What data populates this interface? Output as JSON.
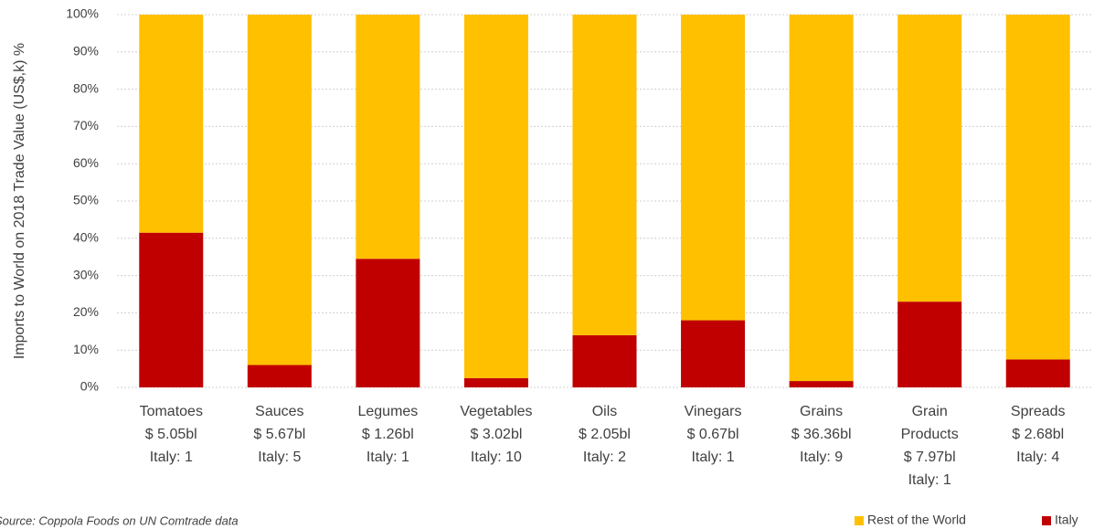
{
  "chart_data": {
    "type": "stacked_bar",
    "y_label": "Imports to World on 2018 Trade Value (US$,k) %",
    "source": "Source: Coppola Foods on UN Comtrade data",
    "categories": [
      [
        "Tomatoes",
        "$ 5.05bl",
        "Italy: 1"
      ],
      [
        "Sauces",
        "$ 5.67bl",
        "Italy: 5"
      ],
      [
        "Legumes",
        "$ 1.26bl",
        "Italy: 1"
      ],
      [
        "Vegetables",
        "$ 3.02bl",
        "Italy: 10"
      ],
      [
        "Oils",
        "$ 2.05bl",
        "Italy: 2"
      ],
      [
        "Vinegars",
        "$ 0.67bl",
        "Italy: 1"
      ],
      [
        "Grains",
        "$ 36.36bl",
        "Italy: 9"
      ],
      [
        "Grain",
        "Products",
        "$ 7.97bl",
        "Italy: 1"
      ],
      [
        "Spreads",
        "$ 2.68bl",
        "Italy: 4"
      ]
    ],
    "series": [
      {
        "name": "Italy",
        "color": "#c00000",
        "values": [
          41.5,
          6,
          34.5,
          2.5,
          14,
          18,
          1.7,
          23,
          7.5
        ]
      },
      {
        "name": "Rest of the World",
        "color": "#ffc000",
        "values": [
          58.5,
          94,
          65.5,
          97.5,
          86,
          82,
          98.3,
          77,
          92.5
        ]
      }
    ],
    "ylim": [
      0,
      100
    ],
    "yticks": [
      {
        "value": 0,
        "label": "0%"
      },
      {
        "value": 10,
        "label": "10%"
      },
      {
        "value": 20,
        "label": "20%"
      },
      {
        "value": 30,
        "label": "30%"
      },
      {
        "value": 40,
        "label": "40%"
      },
      {
        "value": 50,
        "label": "50%"
      },
      {
        "value": 60,
        "label": "60%"
      },
      {
        "value": 70,
        "label": "70%"
      },
      {
        "value": 80,
        "label": "80%"
      },
      {
        "value": 90,
        "label": "90%"
      },
      {
        "value": 100,
        "label": "100%"
      }
    ],
    "grid": true
  }
}
